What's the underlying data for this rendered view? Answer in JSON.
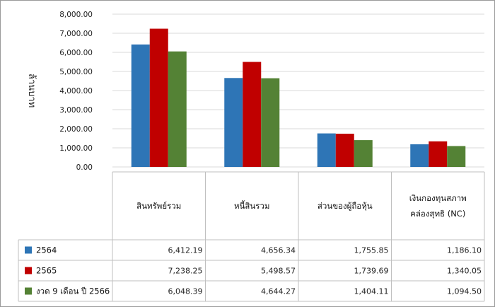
{
  "chart_data": {
    "type": "bar",
    "ylabel": "ล้านบาท",
    "ylim": [
      0,
      8000
    ],
    "yticks": [
      "0.00",
      "1,000.00",
      "2,000.00",
      "3,000.00",
      "4,000.00",
      "5,000.00",
      "6,000.00",
      "7,000.00",
      "8,000.00"
    ],
    "ytick_values": [
      0,
      1000,
      2000,
      3000,
      4000,
      5000,
      6000,
      7000,
      8000
    ],
    "grid": true,
    "categories": [
      {
        "label": "สินทรัพย์รวม",
        "lines": [
          "สินทรัพย์รวม"
        ]
      },
      {
        "label": "หนี้สินรวม",
        "lines": [
          "หนี้สินรวม"
        ]
      },
      {
        "label": "ส่วนของผู้ถือหุ้น",
        "lines": [
          "ส่วนของผู้ถือหุ้น"
        ]
      },
      {
        "label": "เงินกองทุนสภาพคล่องสุทธิ (NC)",
        "lines": [
          "เงินกองทุนสภาพ",
          "คล่องสุทธิ (NC)"
        ]
      }
    ],
    "series": [
      {
        "name": "2564",
        "color": "#2e75b6",
        "values": [
          6412.19,
          4656.34,
          1755.85,
          1186.1
        ],
        "labels": [
          "6,412.19",
          "4,656.34",
          "1,755.85",
          "1,186.10"
        ]
      },
      {
        "name": "2565",
        "color": "#c00000",
        "values": [
          7238.25,
          5498.57,
          1739.69,
          1340.05
        ],
        "labels": [
          "7,238.25",
          "5,498.57",
          "1,739.69",
          "1,340.05"
        ]
      },
      {
        "name": "งวด 9 เดือน ปี 2566",
        "color": "#548235",
        "values": [
          6048.39,
          4644.27,
          1404.11,
          1094.5
        ],
        "labels": [
          "6,048.39",
          "4,644.27",
          "1,404.11",
          "1,094.50"
        ]
      }
    ]
  }
}
